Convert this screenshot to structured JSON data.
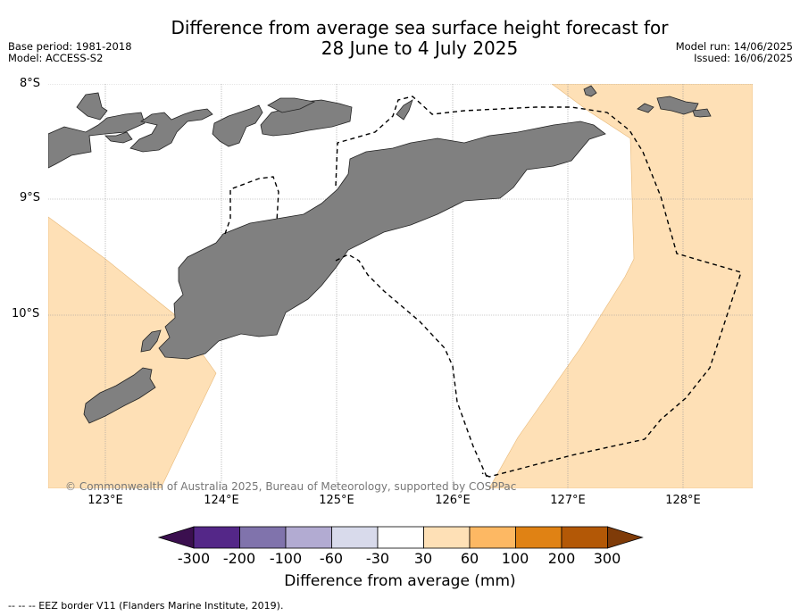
{
  "title_line1": "Difference from average sea surface height forecast for",
  "title_line2": "28 June to 4 July 2025",
  "meta_left": {
    "base_period": "Base period: 1981-2018",
    "model": "Model: ACCESS-S2"
  },
  "meta_right": {
    "model_run": "Model run: 14/06/2025",
    "issued": "Issued: 16/06/2025"
  },
  "lat_labels": [
    "8°S",
    "9°S",
    "10°S"
  ],
  "lon_labels": [
    "123°E",
    "124°E",
    "125°E",
    "126°E",
    "127°E",
    "128°E"
  ],
  "copyright": "© Commonwealth of Australia 2025, Bureau of Meteorology, supported by COSPPac",
  "colorbar": {
    "ticks": [
      "-300",
      "-200",
      "-100",
      "-60",
      "-30",
      "30",
      "60",
      "100",
      "200",
      "300"
    ],
    "colors": [
      "#3b0f4f",
      "#542788",
      "#8073ac",
      "#b2abd2",
      "#d8daeb",
      "#ffffff",
      "#fee0b6",
      "#fdb863",
      "#e08214",
      "#b35806",
      "#7f3b08"
    ],
    "label": "Difference from average (mm)"
  },
  "legend_footer": "--  --  -- EEZ border V11 (Flanders Marine Institute, 2019).",
  "colors": {
    "land": "#808080",
    "anomaly_30_60": "#fee0b6",
    "ocean": "#ffffff"
  }
}
